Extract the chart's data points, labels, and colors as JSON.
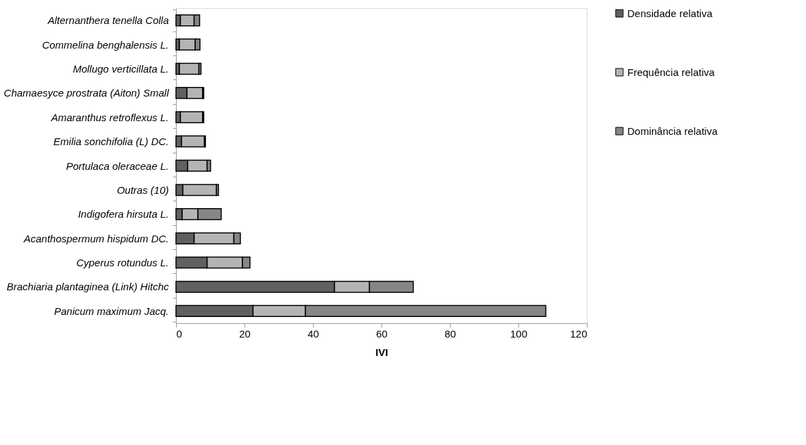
{
  "chart_data": {
    "type": "bar",
    "orientation": "horizontal",
    "stacked": true,
    "xlabel": "IVI",
    "categories": [
      "Alternanthera tenella Colla",
      "Commelina benghalensis L.",
      "Mollugo verticillata L.",
      "Chamaesyce prostrata (Aiton) Small",
      "Amaranthus retroflexus L.",
      "Emilia sonchifolia (L) DC.",
      "Portulaca oleraceae L.",
      "Outras (10)",
      "Indigofera hirsuta L.",
      "Acanthospermum hispidum DC.",
      "Cyperus rotundus L.",
      "Brachiaria plantaginea (Link) Hitchc",
      "Panicum maximum Jacq."
    ],
    "series": [
      {
        "name": "Densidade relativa",
        "color": "#606060",
        "values": [
          1.3,
          1.0,
          1.0,
          3.2,
          1.3,
          1.6,
          3.4,
          2.0,
          1.8,
          5.3,
          9.1,
          46.3,
          22.5
        ]
      },
      {
        "name": "Frequência relativa",
        "color": "#b4b4b4",
        "values": [
          4.0,
          4.6,
          5.7,
          4.6,
          6.5,
          6.7,
          5.7,
          9.8,
          4.6,
          11.6,
          10.3,
          10.2,
          15.3
        ]
      },
      {
        "name": "Dominância relativa",
        "color": "#868686",
        "values": [
          1.6,
          1.4,
          0.6,
          0.3,
          0.3,
          0.3,
          1.0,
          0.6,
          6.8,
          1.9,
          2.2,
          12.8,
          70.2
        ]
      }
    ],
    "xlim": [
      0,
      120
    ],
    "xticks": [
      0,
      20,
      40,
      60,
      80,
      100,
      120
    ],
    "grid": false,
    "legend": "top right"
  }
}
